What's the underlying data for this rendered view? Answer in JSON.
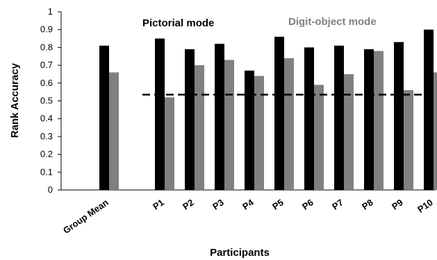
{
  "chart_data": {
    "type": "bar",
    "title": "",
    "xlabel": "Participants",
    "ylabel": "Rank Accuracy",
    "ylim": [
      0,
      1
    ],
    "yticks": [
      "0",
      "0.1",
      "0.2",
      "0.3",
      "0.4",
      "0.5",
      "0.6",
      "0.7",
      "0.8",
      "0.9",
      "1"
    ],
    "categories": [
      "Group Mean",
      "P1",
      "P2",
      "P3",
      "P4",
      "P5",
      "P6",
      "P7",
      "P8",
      "P9",
      "P10"
    ],
    "series": [
      {
        "name": "Pictorial mode",
        "color": "#000000",
        "values": [
          0.81,
          0.85,
          0.79,
          0.82,
          0.67,
          0.86,
          0.8,
          0.81,
          0.79,
          0.83,
          0.9
        ]
      },
      {
        "name": "Digit-object mode",
        "color": "#808080",
        "values": [
          0.66,
          0.52,
          0.7,
          0.73,
          0.64,
          0.74,
          0.59,
          0.65,
          0.78,
          0.56,
          0.66
        ]
      }
    ],
    "reference_line": {
      "value": 0.535,
      "style": "dashed",
      "color": "#000000"
    },
    "legend": {
      "placement": "top"
    },
    "grid": false
  }
}
